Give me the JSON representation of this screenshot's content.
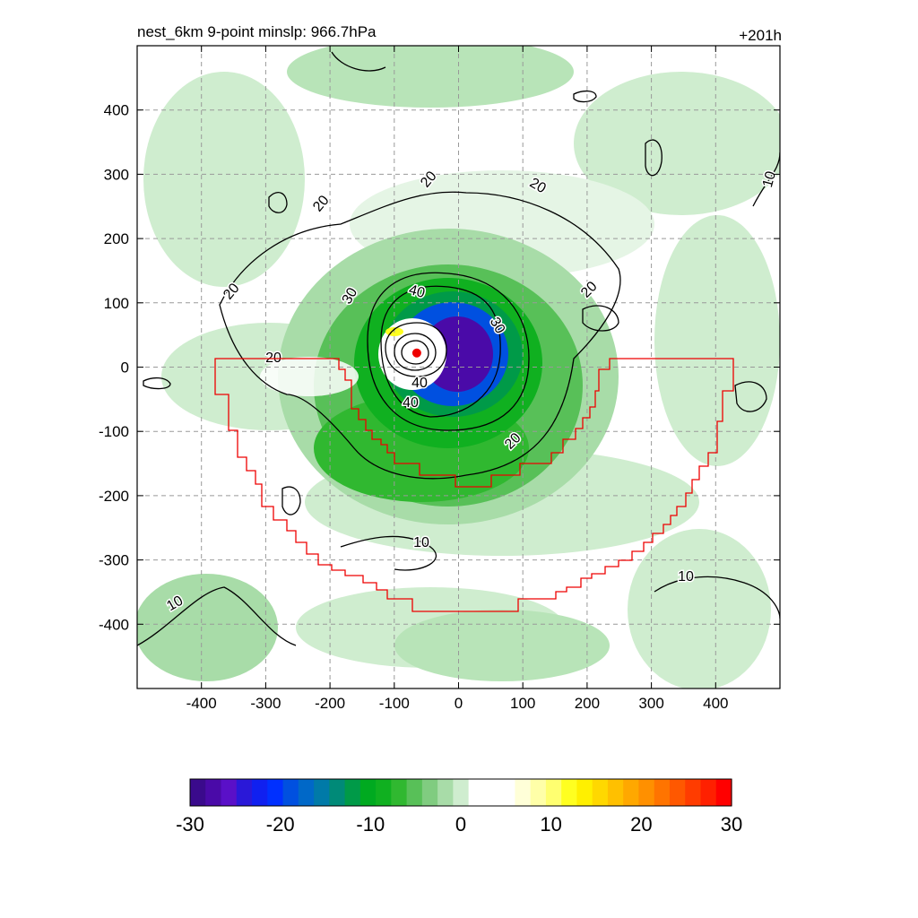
{
  "chart_data": {
    "type": "heatmap",
    "title": "nest_6km  9-point minslp: 966.7hPa",
    "time_label": "+201h",
    "xlim": [
      -500,
      500
    ],
    "ylim": [
      -500,
      500
    ],
    "xticks": [
      -400,
      -300,
      -200,
      -100,
      0,
      100,
      200,
      300,
      400
    ],
    "yticks": [
      -400,
      -300,
      -200,
      -100,
      0,
      100,
      200,
      300,
      400
    ],
    "grid": true,
    "storm_center": [
      -65,
      22
    ],
    "colorbar": {
      "min": -30,
      "max": 30,
      "ticks": [
        -30,
        -20,
        -10,
        0,
        10,
        20,
        30
      ],
      "colors": [
        "#3a0a8c",
        "#4a0aa8",
        "#5a10c8",
        "#2a18d8",
        "#1020f0",
        "#0030ff",
        "#0050e0",
        "#0068c8",
        "#007aa8",
        "#008a78",
        "#009a48",
        "#00aa20",
        "#10b020",
        "#30b830",
        "#58c058",
        "#80cc80",
        "#a8dca8",
        "#cfedcf",
        "#ffffff",
        "#ffffff",
        "#ffffff",
        "#ffffd8",
        "#ffffa8",
        "#ffff70",
        "#ffff20",
        "#fff000",
        "#ffd800",
        "#ffc000",
        "#ffa800",
        "#ff9000",
        "#ff7400",
        "#ff5800",
        "#ff3c00",
        "#ff2000",
        "#ff0000"
      ]
    },
    "contour_labels": [
      "10",
      "10",
      "10",
      "10",
      "20",
      "20",
      "20",
      "20",
      "20",
      "20",
      "20",
      "30",
      "30",
      "40",
      "40",
      "40"
    ],
    "region_boundary_color": "#ee0000"
  }
}
